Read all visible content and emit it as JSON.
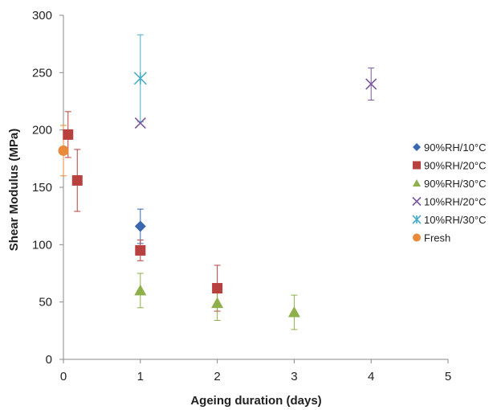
{
  "chart_data": {
    "type": "scatter",
    "title": "",
    "xlabel": "Ageing duration  (days)",
    "ylabel": "Shear Modulus (MPa)",
    "xlim": [
      0,
      5
    ],
    "ylim": [
      0,
      300
    ],
    "xticks": [
      0,
      1,
      2,
      3,
      4,
      5
    ],
    "yticks": [
      0,
      50,
      100,
      150,
      200,
      250,
      300
    ],
    "grid": false,
    "legend_position": "right",
    "series": [
      {
        "name": "90%RH/10°C",
        "marker": "diamond",
        "color": "#3a67b0",
        "points": [
          {
            "x": 1,
            "y": 116,
            "err": 15
          }
        ]
      },
      {
        "name": "90%RH/20°C",
        "marker": "square",
        "color": "#b8403f",
        "points": [
          {
            "x": 0.06,
            "y": 196,
            "err": 20
          },
          {
            "x": 0.18,
            "y": 156,
            "err": 27
          },
          {
            "x": 1,
            "y": 95,
            "err": 9
          },
          {
            "x": 2,
            "y": 62,
            "err": 20
          }
        ]
      },
      {
        "name": "90%RH/30°C",
        "marker": "triangle",
        "color": "#8db04a",
        "points": [
          {
            "x": 1,
            "y": 60,
            "err": 15
          },
          {
            "x": 2,
            "y": 49,
            "err": 15
          },
          {
            "x": 3,
            "y": 41,
            "err": 15
          }
        ]
      },
      {
        "name": "10%RH/20°C",
        "marker": "x",
        "color": "#7a56a0",
        "points": [
          {
            "x": 1,
            "y": 206,
            "err": 0
          },
          {
            "x": 4,
            "y": 240,
            "err": 14
          }
        ]
      },
      {
        "name": "10%RH/30°C",
        "marker": "asterisk",
        "color": "#4aaccb",
        "points": [
          {
            "x": 1,
            "y": 245,
            "err": 38
          }
        ]
      },
      {
        "name": "Fresh",
        "marker": "circle",
        "color": "#e98a3b",
        "points": [
          {
            "x": 0,
            "y": 182,
            "err": 22
          }
        ]
      }
    ]
  }
}
